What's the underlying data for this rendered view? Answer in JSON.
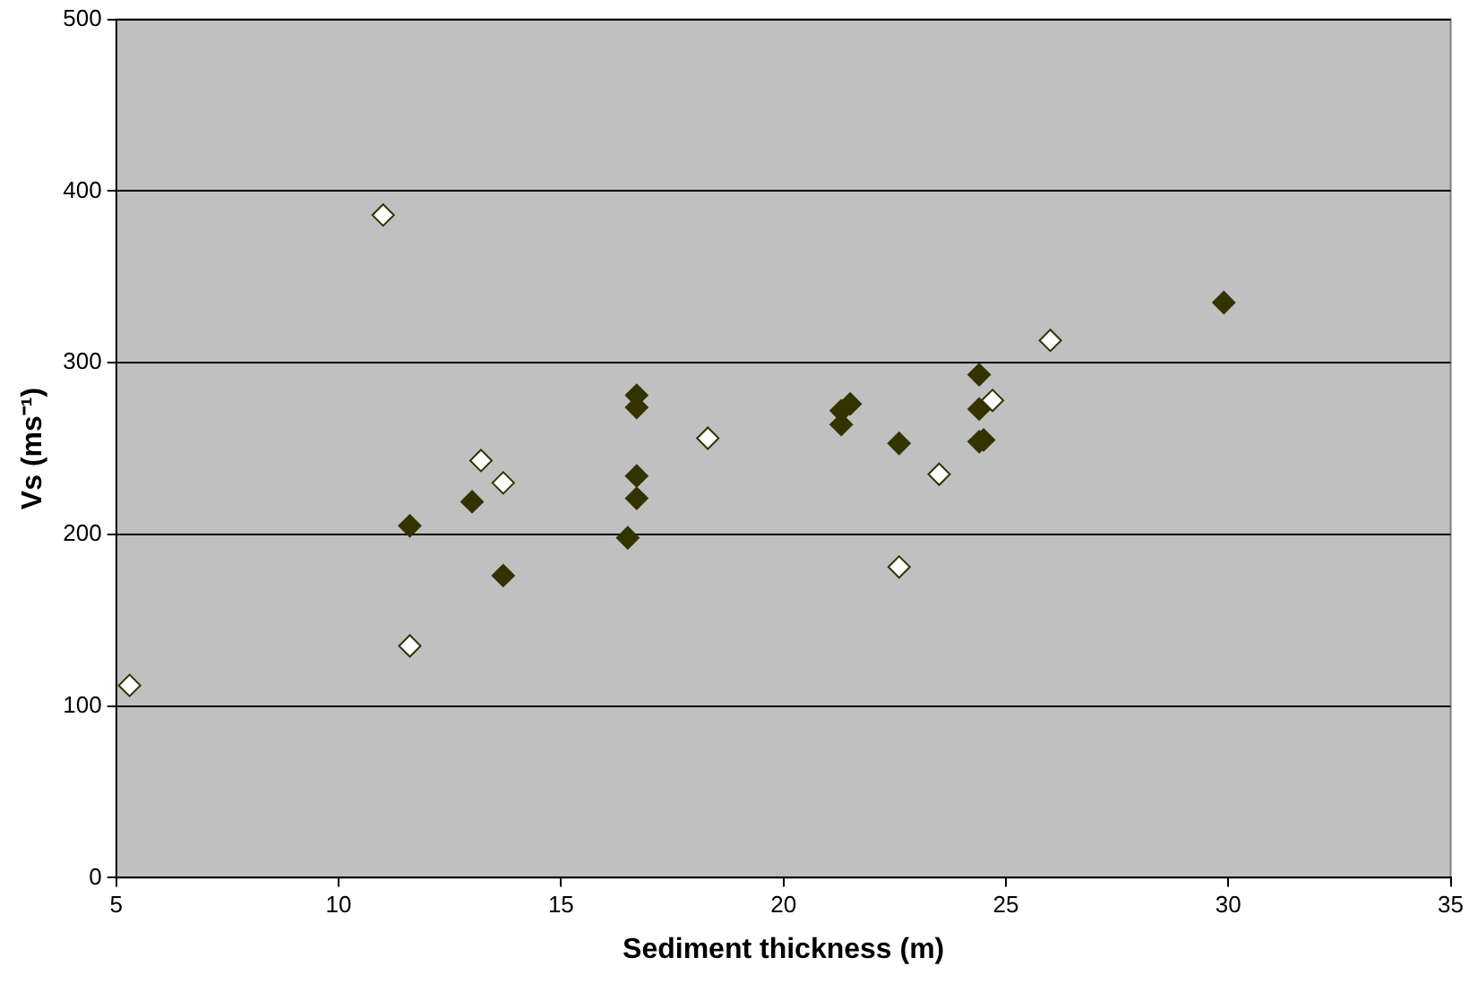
{
  "chart_data": {
    "type": "scatter",
    "xlabel": "Sediment thickness (m)",
    "ylabel": "Vs (ms⁻¹)",
    "xlim": [
      5,
      35
    ],
    "xticks": [
      5,
      10,
      15,
      20,
      25,
      30,
      35
    ],
    "ylim": [
      0,
      500
    ],
    "yticks": [
      0,
      100,
      200,
      300,
      400,
      500
    ],
    "grid": "y",
    "legend": false,
    "marker": "diamond",
    "series": [
      {
        "color": "#333300",
        "x": [
          11.6,
          13.0,
          13.7,
          16.5,
          16.7,
          16.7,
          16.7,
          16.7,
          21.3,
          21.3,
          21.5,
          22.6,
          24.4,
          24.4,
          24.4,
          24.5,
          29.9
        ],
        "values": [
          205,
          219,
          176,
          198,
          281,
          274,
          234,
          221,
          264,
          272,
          276,
          253,
          293,
          273,
          254,
          255,
          335
        ]
      },
      {
        "color": "#ffffff",
        "x": [
          5.3,
          11.0,
          11.6,
          13.2,
          13.7,
          18.3,
          22.6,
          23.5,
          24.7,
          26.0
        ],
        "values": [
          112,
          386,
          135,
          243,
          230,
          256,
          181,
          235,
          278,
          313
        ]
      }
    ]
  }
}
